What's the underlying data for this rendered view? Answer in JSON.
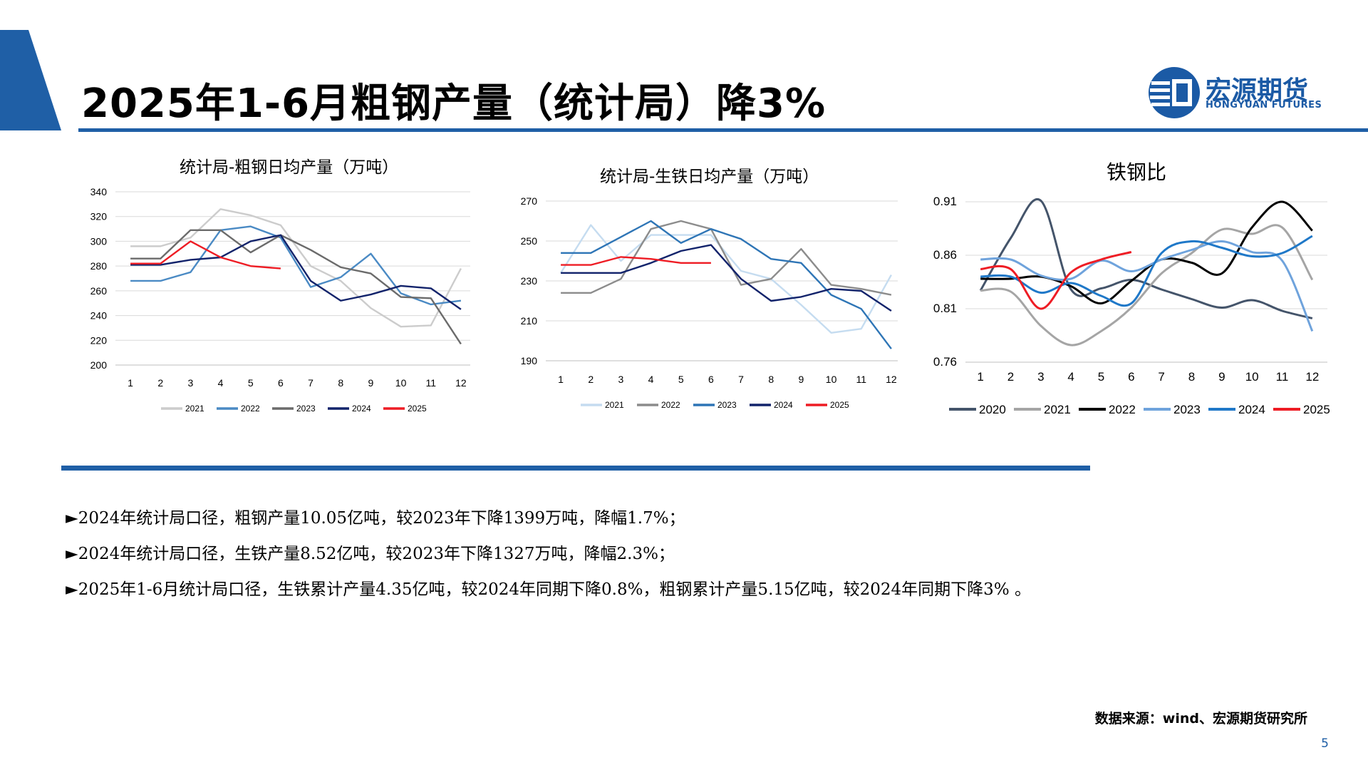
{
  "header": {
    "title": "2025年1-6月粗钢产量（统计局）降3%",
    "logo_cn": "宏源期货",
    "logo_en": "HONGYUAN FUTURES",
    "accent_color": "#1f5fa6"
  },
  "chart_data": [
    {
      "type": "line",
      "title": "统计局-粗钢日均产量（万吨）",
      "categories": [
        "1",
        "2",
        "3",
        "4",
        "5",
        "6",
        "7",
        "8",
        "9",
        "10",
        "11",
        "12"
      ],
      "ylim": [
        200,
        340
      ],
      "yticks": [
        "340",
        "320",
        "300",
        "280",
        "260",
        "240",
        "220",
        "200"
      ],
      "legend_position": "bottom",
      "series": [
        {
          "name": "2021",
          "color": "#cccccc",
          "values": [
            296,
            296,
            303,
            326,
            321,
            313,
            280,
            268,
            246,
            231,
            232,
            278
          ]
        },
        {
          "name": "2022",
          "color": "#4a8ac4",
          "values": [
            268,
            268,
            275,
            309,
            312,
            303,
            263,
            271,
            290,
            258,
            249,
            252
          ]
        },
        {
          "name": "2023",
          "color": "#6b6b6b",
          "values": [
            286,
            286,
            309,
            309,
            291,
            305,
            293,
            279,
            274,
            255,
            254,
            217
          ]
        },
        {
          "name": "2024",
          "color": "#12236b",
          "values": [
            281,
            281,
            285,
            287,
            300,
            305,
            268,
            252,
            257,
            264,
            262,
            245
          ]
        },
        {
          "name": "2025",
          "color": "#ee1c24",
          "values": [
            282,
            282,
            300,
            287,
            280,
            278,
            null,
            null,
            null,
            null,
            null,
            null
          ]
        }
      ]
    },
    {
      "type": "line",
      "title": "统计局-生铁日均产量（万吨）",
      "categories": [
        "1",
        "2",
        "3",
        "4",
        "5",
        "6",
        "7",
        "8",
        "9",
        "10",
        "11",
        "12"
      ],
      "ylim": [
        190,
        270
      ],
      "yticks": [
        "270",
        "250",
        "230",
        "210",
        "190"
      ],
      "legend_position": "bottom",
      "series": [
        {
          "name": "2021",
          "color": "#c5dcf0",
          "values": [
            234,
            258,
            240,
            253,
            253,
            253,
            235,
            231,
            218,
            204,
            206,
            233
          ]
        },
        {
          "name": "2022",
          "color": "#8c8c8c",
          "values": [
            224,
            224,
            231,
            256,
            260,
            256,
            228,
            231,
            246,
            228,
            226,
            223
          ]
        },
        {
          "name": "2023",
          "color": "#2e75b6",
          "values": [
            244,
            244,
            252,
            260,
            249,
            256,
            251,
            241,
            239,
            223,
            216,
            196
          ]
        },
        {
          "name": "2024",
          "color": "#12236b",
          "values": [
            234,
            234,
            234,
            239,
            245,
            248,
            231,
            220,
            222,
            226,
            225,
            215
          ]
        },
        {
          "name": "2025",
          "color": "#ee1c24",
          "values": [
            238,
            238,
            242,
            241,
            239,
            239,
            null,
            null,
            null,
            null,
            null,
            null
          ]
        }
      ]
    },
    {
      "type": "line",
      "title": "铁钢比",
      "categories": [
        "1",
        "2",
        "3",
        "4",
        "5",
        "6",
        "7",
        "8",
        "9",
        "10",
        "11",
        "12"
      ],
      "ylim": [
        0.76,
        0.91
      ],
      "yticks": [
        "0.91",
        "0.86",
        "0.81",
        "0.76"
      ],
      "legend_position": "bottom",
      "series": [
        {
          "name": "2020",
          "color": "#44546a",
          "values": [
            0.827,
            0.876,
            0.911,
            0.828,
            0.829,
            0.837,
            0.828,
            0.819,
            0.811,
            0.818,
            0.808,
            0.801
          ]
        },
        {
          "name": "2021",
          "color": "#a5a5a5",
          "values": [
            0.827,
            0.826,
            0.794,
            0.776,
            0.789,
            0.811,
            0.843,
            0.862,
            0.884,
            0.88,
            0.886,
            0.837
          ]
        },
        {
          "name": "2022",
          "color": "#000000",
          "values": [
            0.838,
            0.838,
            0.84,
            0.831,
            0.815,
            0.836,
            0.856,
            0.853,
            0.843,
            0.886,
            0.91,
            0.883
          ]
        },
        {
          "name": "2023",
          "color": "#6fa3dc",
          "values": [
            0.856,
            0.856,
            0.841,
            0.838,
            0.855,
            0.845,
            0.856,
            0.865,
            0.873,
            0.863,
            0.855,
            0.789
          ]
        },
        {
          "name": "2024",
          "color": "#1f78c8",
          "values": [
            0.84,
            0.84,
            0.825,
            0.834,
            0.822,
            0.815,
            0.862,
            0.873,
            0.867,
            0.859,
            0.862,
            0.878
          ]
        },
        {
          "name": "2025",
          "color": "#ee1c24",
          "values": [
            0.847,
            0.847,
            0.81,
            0.844,
            0.856,
            0.863,
            null,
            null,
            null,
            null,
            null,
            null
          ]
        }
      ]
    }
  ],
  "bullets": [
    "►2024年统计局口径，粗钢产量10.05亿吨，较2023年下降1399万吨，降幅1.7%；",
    "►2024年统计局口径，生铁产量8.52亿吨，较2023年下降1327万吨，降幅2.3%；",
    "►2025年1-6月统计局口径，生铁累计产量4.35亿吨，较2024年同期下降0.8%，粗钢累计产量5.15亿吨，较2024年同期下降3% 。"
  ],
  "footer": {
    "source": "数据来源：wind、宏源期货研究所",
    "page_number": "5"
  }
}
